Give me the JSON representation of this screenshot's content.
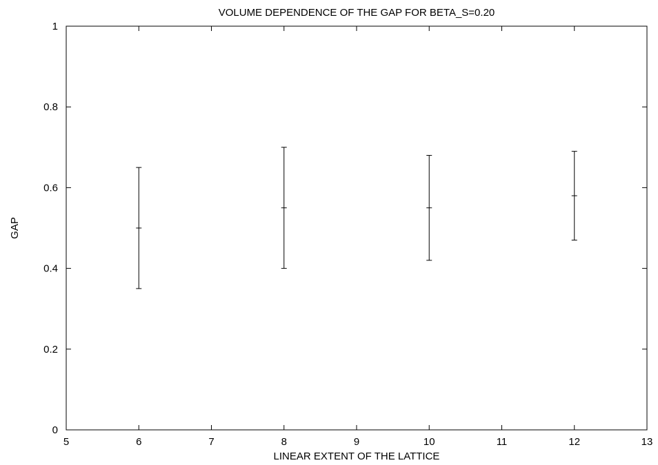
{
  "chart_data": {
    "type": "scatter",
    "title": "VOLUME DEPENDENCE OF THE GAP FOR BETA_S=0.20",
    "xlabel": "LINEAR EXTENT OF THE LATTICE",
    "ylabel": "GAP",
    "xlim": [
      5,
      13
    ],
    "ylim": [
      0,
      1
    ],
    "x_ticks": [
      5,
      6,
      7,
      8,
      9,
      10,
      11,
      12,
      13
    ],
    "y_ticks": [
      0,
      0.2,
      0.4,
      0.6,
      0.8,
      1
    ],
    "y_tick_labels": [
      "0",
      "0.2",
      "0.4",
      "0.6",
      "0.8",
      "1"
    ],
    "grid": false,
    "legend": "none",
    "series": [
      {
        "style": "error bars",
        "color": "#000000",
        "points": [
          {
            "x": 6,
            "y": 0.5,
            "ylow": 0.35,
            "yhigh": 0.65
          },
          {
            "x": 8,
            "y": 0.55,
            "ylow": 0.4,
            "yhigh": 0.7
          },
          {
            "x": 10,
            "y": 0.55,
            "ylow": 0.42,
            "yhigh": 0.68
          },
          {
            "x": 12,
            "y": 0.58,
            "ylow": 0.47,
            "yhigh": 0.69
          }
        ]
      }
    ]
  }
}
